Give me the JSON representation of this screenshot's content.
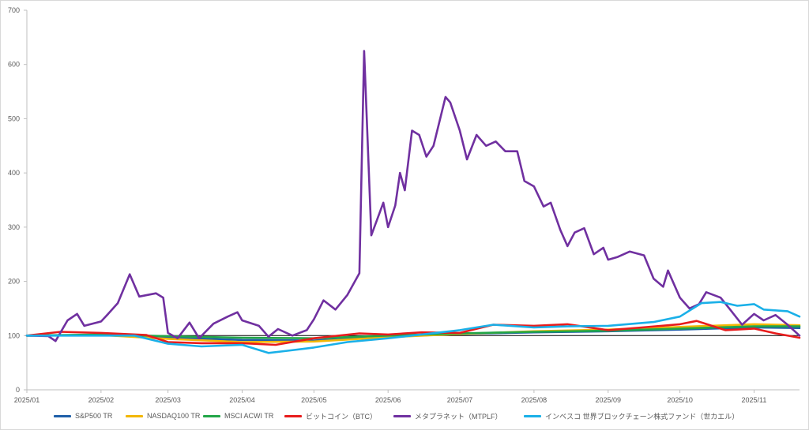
{
  "chart_data": {
    "type": "line",
    "title": "",
    "xlabel": "",
    "ylabel": "",
    "ylim": [
      0,
      700
    ],
    "yticks": [
      0,
      100,
      200,
      300,
      400,
      500,
      600,
      700
    ],
    "xticks": [
      "2025/01",
      "2025/02",
      "2025/03",
      "2025/04",
      "2025/05",
      "2025/06",
      "2025/07",
      "2025/08",
      "2025/09",
      "2025/10",
      "2025/11"
    ],
    "reference_line": 100,
    "grid": false,
    "legend": "bottom",
    "series": [
      {
        "name": "S&P500 TR",
        "color": "#1f5fa8",
        "points": [
          [
            "2025/01",
            100
          ],
          [
            "2025/02",
            101
          ],
          [
            "2025/03",
            96
          ],
          [
            "2025/04",
            92
          ],
          [
            "2025/05",
            91
          ],
          [
            "2025/06",
            98
          ],
          [
            "2025/07",
            103
          ],
          [
            "2025/08",
            106
          ],
          [
            "2025/09",
            108
          ],
          [
            "2025/10",
            111
          ],
          [
            "2025/11",
            115
          ],
          [
            "2025/11/20",
            114
          ]
        ]
      },
      {
        "name": "NASDAQ100 TR",
        "color": "#f2b705",
        "points": [
          [
            "2025/01",
            100
          ],
          [
            "2025/02",
            101
          ],
          [
            "2025/03",
            94
          ],
          [
            "2025/04",
            88
          ],
          [
            "2025/05",
            89
          ],
          [
            "2025/06",
            97
          ],
          [
            "2025/07",
            103
          ],
          [
            "2025/08",
            108
          ],
          [
            "2025/09",
            111
          ],
          [
            "2025/10",
            116
          ],
          [
            "2025/11",
            121
          ],
          [
            "2025/11/20",
            119
          ]
        ]
      },
      {
        "name": "MSCI ACWI TR",
        "color": "#22a648",
        "points": [
          [
            "2025/01",
            100
          ],
          [
            "2025/02",
            102
          ],
          [
            "2025/03",
            99
          ],
          [
            "2025/04",
            96
          ],
          [
            "2025/05",
            95
          ],
          [
            "2025/06",
            100
          ],
          [
            "2025/07",
            104
          ],
          [
            "2025/08",
            107
          ],
          [
            "2025/09",
            109
          ],
          [
            "2025/10",
            113
          ],
          [
            "2025/11",
            117
          ],
          [
            "2025/11/20",
            117
          ]
        ]
      },
      {
        "name": "ビットコイン（BTC）",
        "color": "#e81c1c",
        "points": [
          [
            "2025/01",
            100
          ],
          [
            "2025/01/15",
            107
          ],
          [
            "2025/02",
            105
          ],
          [
            "2025/02/20",
            101
          ],
          [
            "2025/03",
            88
          ],
          [
            "2025/03/15",
            86
          ],
          [
            "2025/04",
            86
          ],
          [
            "2025/04/15",
            83
          ],
          [
            "2025/05",
            95
          ],
          [
            "2025/05/20",
            104
          ],
          [
            "2025/06",
            102
          ],
          [
            "2025/06/15",
            106
          ],
          [
            "2025/07",
            105
          ],
          [
            "2025/07/15",
            120
          ],
          [
            "2025/08",
            118
          ],
          [
            "2025/08/15",
            121
          ],
          [
            "2025/09",
            110
          ],
          [
            "2025/09/15",
            115
          ],
          [
            "2025/10",
            121
          ],
          [
            "2025/10/08",
            127
          ],
          [
            "2025/10/20",
            110
          ],
          [
            "2025/11",
            113
          ],
          [
            "2025/11/10",
            104
          ],
          [
            "2025/11/20",
            96
          ]
        ]
      },
      {
        "name": "メタプラネット（MTPLF）",
        "color": "#7030a0",
        "points": [
          [
            "2025/01",
            100
          ],
          [
            "2025/01/10",
            99
          ],
          [
            "2025/01/13",
            90
          ],
          [
            "2025/01/18",
            128
          ],
          [
            "2025/01/22",
            140
          ],
          [
            "2025/01/25",
            118
          ],
          [
            "2025/02",
            126
          ],
          [
            "2025/02/04",
            140
          ],
          [
            "2025/02/08",
            160
          ],
          [
            "2025/02/13",
            213
          ],
          [
            "2025/02/17",
            172
          ],
          [
            "2025/02/24",
            178
          ],
          [
            "2025/02/27",
            170
          ],
          [
            "2025/03",
            105
          ],
          [
            "2025/03/05",
            95
          ],
          [
            "2025/03/10",
            124
          ],
          [
            "2025/03/14",
            95
          ],
          [
            "2025/03/20",
            122
          ],
          [
            "2025/03/26",
            135
          ],
          [
            "2025/03/30",
            143
          ],
          [
            "2025/04",
            128
          ],
          [
            "2025/04/08",
            118
          ],
          [
            "2025/04/12",
            98
          ],
          [
            "2025/04/16",
            112
          ],
          [
            "2025/04/22",
            100
          ],
          [
            "2025/04/28",
            110
          ],
          [
            "2025/05",
            130
          ],
          [
            "2025/05/05",
            165
          ],
          [
            "2025/05/10",
            148
          ],
          [
            "2025/05/15",
            175
          ],
          [
            "2025/05/20",
            215
          ],
          [
            "2025/05/22",
            625
          ],
          [
            "2025/05/25",
            285
          ],
          [
            "2025/05/30",
            345
          ],
          [
            "2025/06",
            300
          ],
          [
            "2025/06/04",
            340
          ],
          [
            "2025/06/06",
            400
          ],
          [
            "2025/06/08",
            368
          ],
          [
            "2025/06/11",
            478
          ],
          [
            "2025/06/14",
            470
          ],
          [
            "2025/06/17",
            430
          ],
          [
            "2025/06/20",
            450
          ],
          [
            "2025/06/25",
            540
          ],
          [
            "2025/06/27",
            530
          ],
          [
            "2025/07",
            478
          ],
          [
            "2025/07/04",
            425
          ],
          [
            "2025/07/08",
            470
          ],
          [
            "2025/07/12",
            450
          ],
          [
            "2025/07/16",
            458
          ],
          [
            "2025/07/20",
            440
          ],
          [
            "2025/07/25",
            440
          ],
          [
            "2025/07/28",
            385
          ],
          [
            "2025/08",
            375
          ],
          [
            "2025/08/05",
            338
          ],
          [
            "2025/08/08",
            345
          ],
          [
            "2025/08/12",
            295
          ],
          [
            "2025/08/15",
            265
          ],
          [
            "2025/08/18",
            290
          ],
          [
            "2025/08/22",
            298
          ],
          [
            "2025/08/26",
            250
          ],
          [
            "2025/08/30",
            262
          ],
          [
            "2025/09",
            240
          ],
          [
            "2025/09/05",
            245
          ],
          [
            "2025/09/10",
            255
          ],
          [
            "2025/09/16",
            248
          ],
          [
            "2025/09/20",
            205
          ],
          [
            "2025/09/24",
            190
          ],
          [
            "2025/09/26",
            220
          ],
          [
            "2025/10",
            170
          ],
          [
            "2025/10/05",
            150
          ],
          [
            "2025/10/09",
            158
          ],
          [
            "2025/10/12",
            180
          ],
          [
            "2025/10/18",
            170
          ],
          [
            "2025/10/22",
            148
          ],
          [
            "2025/10/27",
            120
          ],
          [
            "2025/11",
            140
          ],
          [
            "2025/11/05",
            128
          ],
          [
            "2025/11/10",
            138
          ],
          [
            "2025/11/15",
            120
          ],
          [
            "2025/11/20",
            100
          ]
        ]
      },
      {
        "name": "インベスコ 世界ブロックチェーン株式ファンド（世カエル）",
        "color": "#1ab0e8",
        "points": [
          [
            "2025/01",
            100
          ],
          [
            "2025/02",
            100
          ],
          [
            "2025/02/15",
            100
          ],
          [
            "2025/03",
            85
          ],
          [
            "2025/03/15",
            80
          ],
          [
            "2025/04",
            83
          ],
          [
            "2025/04/12",
            68
          ],
          [
            "2025/04/20",
            72
          ],
          [
            "2025/05",
            78
          ],
          [
            "2025/05/15",
            88
          ],
          [
            "2025/06",
            95
          ],
          [
            "2025/06/15",
            102
          ],
          [
            "2025/07",
            110
          ],
          [
            "2025/07/15",
            120
          ],
          [
            "2025/08",
            115
          ],
          [
            "2025/08/15",
            117
          ],
          [
            "2025/09",
            118
          ],
          [
            "2025/09/20",
            125
          ],
          [
            "2025/10",
            135
          ],
          [
            "2025/10/10",
            160
          ],
          [
            "2025/10/18",
            162
          ],
          [
            "2025/10/25",
            155
          ],
          [
            "2025/11",
            158
          ],
          [
            "2025/11/05",
            148
          ],
          [
            "2025/11/15",
            145
          ],
          [
            "2025/11/20",
            135
          ]
        ]
      }
    ]
  }
}
